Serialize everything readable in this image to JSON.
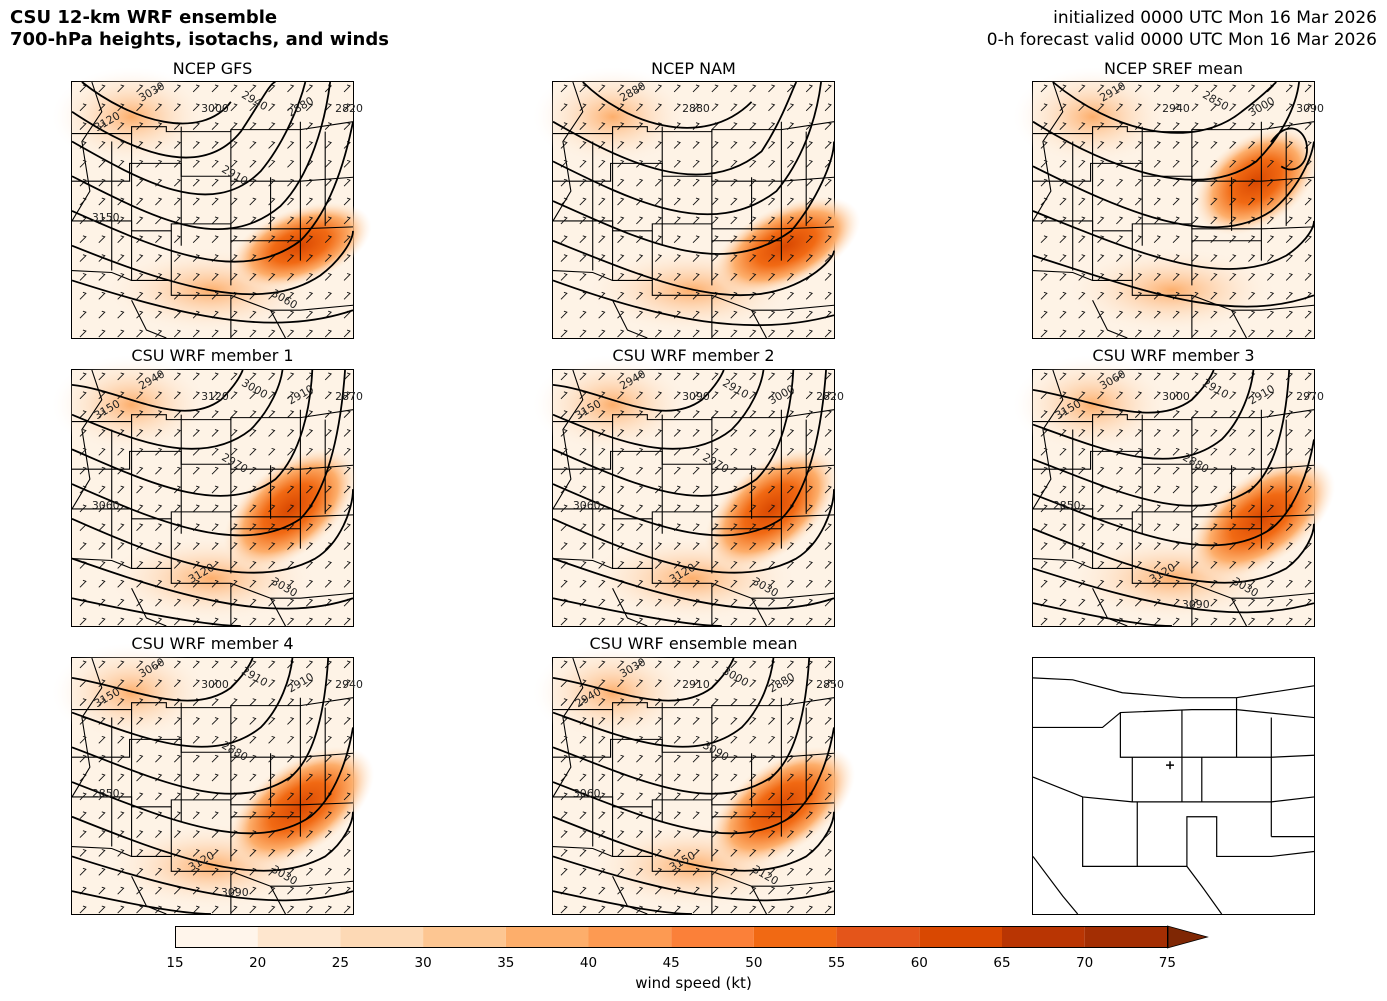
{
  "header": {
    "title_line1": "CSU 12-km WRF ensemble",
    "title_line2": "700-hPa heights, isotachs, and winds",
    "init_text": "initialized 0000 UTC Mon 16 Mar 2026",
    "valid_text": "0-h forecast valid 0000 UTC Mon 16 Mar 2026"
  },
  "panels": [
    {
      "title": "NCEP GFS",
      "labels": [
        "3030",
        "3000",
        "2940",
        "2880",
        "2820",
        "2910",
        "3120",
        "3150",
        "3060"
      ],
      "jet": "a",
      "empty": false
    },
    {
      "title": "NCEP NAM",
      "labels": [
        "2880",
        "2880"
      ],
      "jet": "b",
      "empty": false
    },
    {
      "title": "NCEP SREF mean",
      "labels": [
        "2910",
        "2940",
        "2850",
        "3000",
        "3090"
      ],
      "jet": "c",
      "empty": false
    },
    {
      "title": "CSU WRF member 1",
      "labels": [
        "2940",
        "3120",
        "3000",
        "2910",
        "2870",
        "2970",
        "3150",
        "3060",
        "3030",
        "3120"
      ],
      "jet": "d",
      "empty": false
    },
    {
      "title": "CSU WRF member 2",
      "labels": [
        "2940",
        "3090",
        "2910",
        "3000",
        "2820",
        "2970",
        "3150",
        "3060",
        "3030",
        "3120"
      ],
      "jet": "d",
      "empty": false
    },
    {
      "title": "CSU WRF member 3",
      "labels": [
        "3060",
        "3000",
        "2910",
        "2910",
        "2970",
        "2880",
        "3150",
        "2850",
        "3030",
        "3120",
        "3090"
      ],
      "jet": "e",
      "empty": false
    },
    {
      "title": "CSU WRF member 4",
      "labels": [
        "3060",
        "3000",
        "2910",
        "2910",
        "2940",
        "2880",
        "3150",
        "2850",
        "3030",
        "3120",
        "3090"
      ],
      "jet": "e",
      "empty": false
    },
    {
      "title": "CSU WRF ensemble mean",
      "labels": [
        "3030",
        "2910",
        "3000",
        "2880",
        "2850",
        "3090",
        "2940",
        "3060",
        "3120",
        "3150"
      ],
      "jet": "e",
      "empty": false
    },
    {
      "title": "",
      "labels": [],
      "jet": "",
      "empty": true
    }
  ],
  "colorbar": {
    "label": "wind speed (kt)",
    "ticks": [
      "15",
      "20",
      "25",
      "30",
      "35",
      "40",
      "45",
      "50",
      "55",
      "60",
      "65",
      "70",
      "75"
    ],
    "colors": [
      "#fff5eb",
      "#fee6ce",
      "#fdd9b5",
      "#fdc692",
      "#fdae6b",
      "#fd9a52",
      "#fb8039",
      "#f16913",
      "#e4551a",
      "#d94801",
      "#b93503",
      "#a32e03",
      "#7f2704"
    ]
  }
}
